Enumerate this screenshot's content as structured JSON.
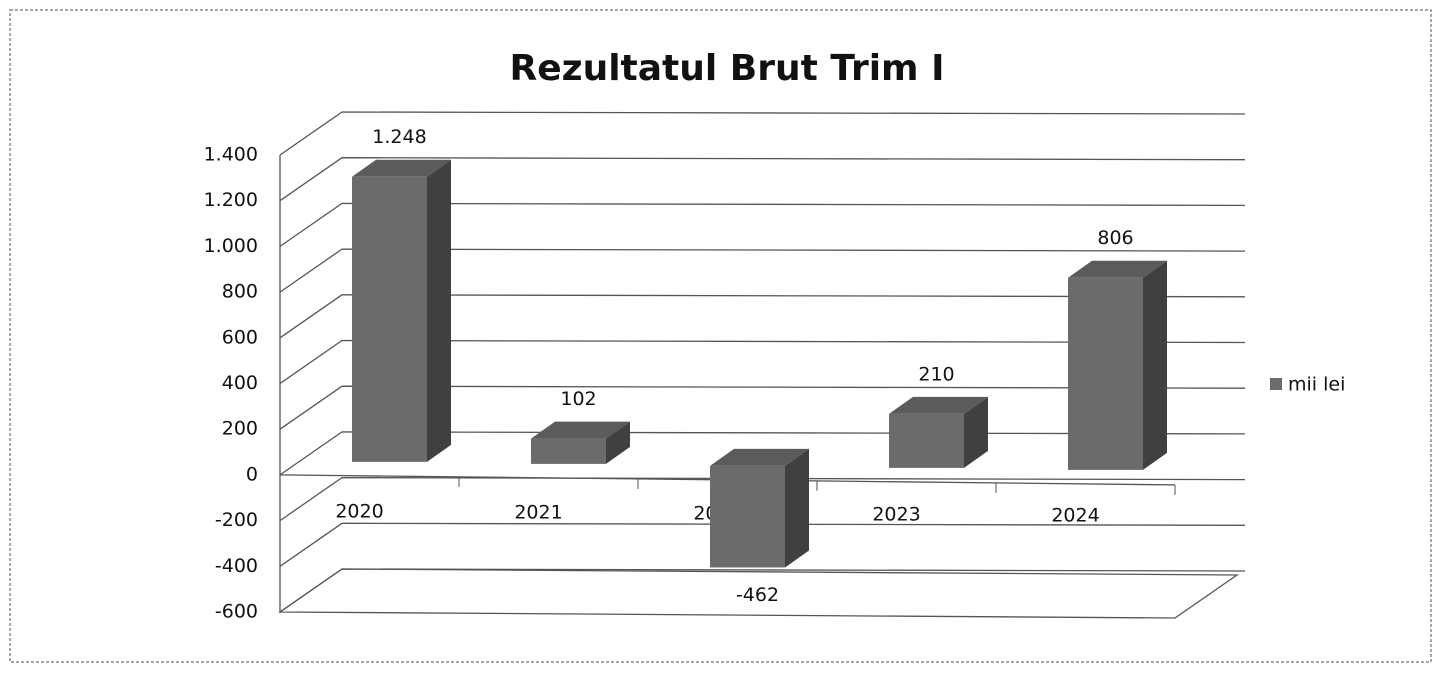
{
  "chart_data": {
    "type": "bar3d",
    "title": "Rezultatul Brut Trim I",
    "categories": [
      "2020",
      "2021",
      "2022",
      "2023",
      "2024"
    ],
    "series": [
      {
        "name": "mii lei",
        "color": "#6b6b6b",
        "values": [
          1248,
          102,
          -462,
          210,
          806
        ],
        "value_labels": [
          "1.248",
          "102",
          "-462",
          "210",
          "806"
        ]
      }
    ],
    "ylim": [
      -600,
      1400
    ],
    "yticks": [
      -600,
      -400,
      -200,
      0,
      200,
      400,
      600,
      800,
      {
        "value": 1000,
        "label": "1.000"
      },
      {
        "value": 1200,
        "label": "1.200"
      },
      {
        "value": 1400,
        "label": "1.400"
      }
    ],
    "grid": true,
    "legend": "right"
  }
}
